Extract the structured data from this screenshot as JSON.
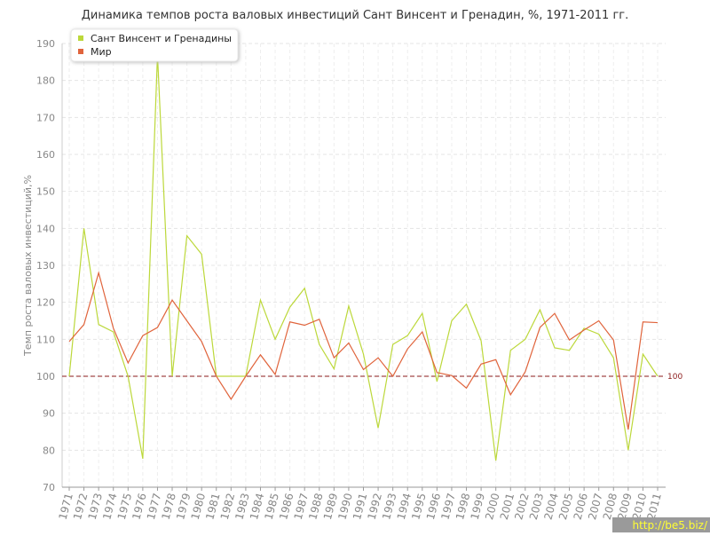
{
  "chart_data": {
    "type": "line",
    "title": "Динамика темпов роста валовых инвестиций Сант Винсент и Гренадин, %, 1971-2011 гг.",
    "y_label": "Темп роста валовых инвестиций,%",
    "categories": [
      "1971",
      "1972",
      "1973",
      "1974",
      "1975",
      "1976",
      "1977",
      "1978",
      "1979",
      "1980",
      "1981",
      "1982",
      "1983",
      "1984",
      "1985",
      "1986",
      "1987",
      "1988",
      "1989",
      "1990",
      "1991",
      "1992",
      "1993",
      "1994",
      "1995",
      "1996",
      "1997",
      "1998",
      "1999",
      "2000",
      "2001",
      "2002",
      "2003",
      "2004",
      "2005",
      "2006",
      "2007",
      "2008",
      "2009",
      "2010",
      "2011"
    ],
    "series": [
      {
        "name": "Сант Винсент и Гренадины",
        "color": "#bcd83a",
        "values": [
          100,
          140,
          114,
          112,
          100,
          77.7,
          187,
          100,
          138,
          133,
          100,
          100,
          100,
          120.6,
          110,
          118.7,
          123.8,
          108.6,
          102,
          119,
          106,
          86,
          108.6,
          111,
          117,
          98.6,
          115,
          119.5,
          109.6,
          77.2,
          107,
          110,
          118,
          107.7,
          107,
          113,
          111.4,
          105,
          80,
          106,
          100
        ]
      },
      {
        "name": "Мир",
        "color": "#e0643c",
        "values": [
          109.4,
          114,
          128,
          113,
          103.6,
          111,
          113.2,
          120.6,
          115,
          109.4,
          100,
          93.8,
          100,
          105.8,
          100.5,
          114.7,
          113.8,
          115.4,
          105,
          109,
          101.8,
          105,
          100,
          107.4,
          112,
          101,
          100.2,
          96.8,
          103.3,
          104.5,
          95,
          101.2,
          113.2,
          117,
          109.8,
          112.5,
          115,
          109.8,
          85.6,
          114.7,
          114.5
        ]
      }
    ],
    "ylim": [
      70,
      190
    ],
    "yticks": [
      70,
      80,
      90,
      100,
      110,
      120,
      130,
      140,
      150,
      160,
      170,
      180,
      190
    ],
    "grid": true,
    "reference_line": 100,
    "reference_color": "#8b1a1a",
    "legend": "top-left",
    "watermark": "http://be5.biz/"
  }
}
